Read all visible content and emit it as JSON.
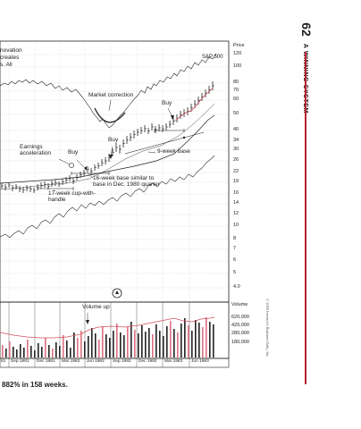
{
  "page": {
    "page_number": "62",
    "running_head": "A WINNING SYSTEM",
    "caption": "882% in 158 weeks.",
    "copyright": "© 2009 Investor's Business Daily, Inc.",
    "accent_color": "#b8202e"
  },
  "chart": {
    "header_fragments": [
      "novation",
      "creates",
      "s. All"
    ],
    "price_axis_title": "Price",
    "index_label": "S&P 500",
    "price_labels": [
      "120",
      "100",
      "80",
      "70",
      "60",
      "50",
      "40",
      "34",
      "30",
      "26",
      "22",
      "19",
      "16",
      "14",
      "12",
      "10",
      "8",
      "7",
      "6",
      "5",
      "4.0"
    ],
    "volume_axis_title": "Volume",
    "volume_labels": [
      "620,000",
      "420,000",
      "280,000",
      "180,000"
    ],
    "x_labels": [
      "81",
      "Sep 1981",
      "Dec 1981",
      "Mar 1982",
      "Jun 1982",
      "Sep 1982",
      "Dec 1982",
      "Mar 1983",
      "Jun 1983"
    ],
    "annotations": {
      "market_correction": "Market correction",
      "buy_top": "Buy",
      "buy_mid": "Buy",
      "buy_left": "Buy",
      "earnings_acceleration": "Earnings acceleration",
      "nine_week_base": "9-week base",
      "sixteen_week_base": "16-week base similar to base in Dec. 1980 quarter",
      "seventeen_week": "17-week cup-with-handle",
      "volume_up": "Volume up"
    },
    "colors": {
      "price_bars": "#222222",
      "volume_avg_line": "#d0505e",
      "volume_red_bars": "#e07080",
      "grid": "#b9b9b9"
    }
  }
}
